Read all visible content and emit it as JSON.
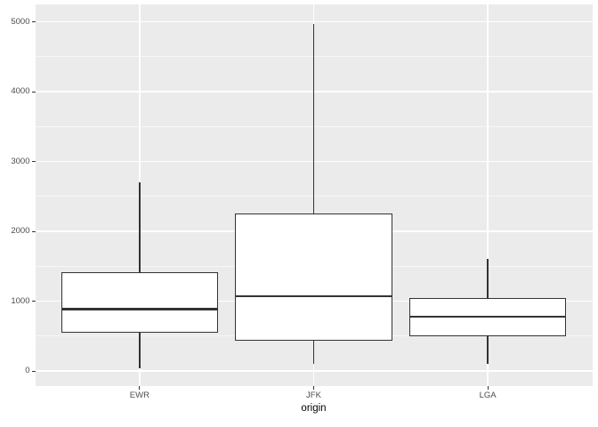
{
  "chart_data": {
    "type": "boxplot",
    "title": "",
    "xlabel": "origin",
    "ylabel": "",
    "categories": [
      "EWR",
      "JFK",
      "LGA"
    ],
    "series": [
      {
        "name": "EWR",
        "whisker_low": 40,
        "q1": 545,
        "median": 885,
        "q3": 1410,
        "whisker_high": 2700
      },
      {
        "name": "JFK",
        "whisker_low": 105,
        "q1": 435,
        "median": 1070,
        "q3": 2250,
        "whisker_high": 4975
      },
      {
        "name": "LGA",
        "whisker_low": 105,
        "q1": 495,
        "median": 775,
        "q3": 1040,
        "whisker_high": 1605
      }
    ],
    "y_ticks": [
      0,
      1000,
      2000,
      3000,
      4000,
      5000
    ],
    "y_tick_labels": [
      "0",
      "1000",
      "2000",
      "3000",
      "4000",
      "5000"
    ],
    "y_minor_ticks": [
      500,
      1500,
      2500,
      3500,
      4500
    ],
    "ylim": [
      -210,
      5250
    ],
    "grid": true,
    "legend": false,
    "outliers_shown": false,
    "theme": {
      "panel_bg": "#EBEBEB",
      "grid_color": "#FFFFFF",
      "box_fill": "#FFFFFF",
      "box_stroke": "#333333",
      "axis_text_color": "#4D4D4D",
      "axis_title_color": "#000000",
      "tick_color": "#333333",
      "outer_bg": "#FFFFFF"
    }
  }
}
